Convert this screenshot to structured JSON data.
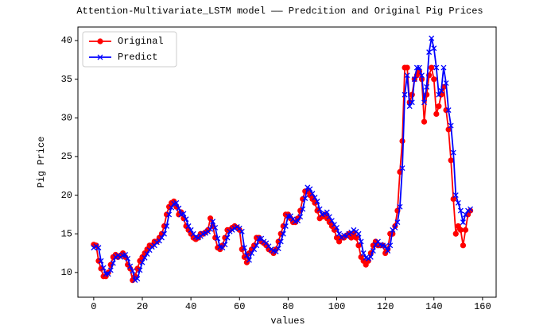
{
  "chart_data": {
    "type": "line",
    "title": "Attention-Multivariate_LSTM model —— Predcition and Original Pig Prices",
    "x_label": "values",
    "y_label": "Pig Price",
    "x": [
      0,
      1,
      2,
      3,
      4,
      5,
      6,
      7,
      8,
      9,
      10,
      11,
      12,
      13,
      14,
      15,
      16,
      17,
      18,
      19,
      20,
      21,
      22,
      23,
      24,
      25,
      26,
      27,
      28,
      29,
      30,
      31,
      32,
      33,
      34,
      35,
      36,
      37,
      38,
      39,
      40,
      41,
      42,
      43,
      44,
      45,
      46,
      47,
      48,
      49,
      50,
      51,
      52,
      53,
      54,
      55,
      56,
      57,
      58,
      59,
      60,
      61,
      62,
      63,
      64,
      65,
      66,
      67,
      68,
      69,
      70,
      71,
      72,
      73,
      74,
      75,
      76,
      77,
      78,
      79,
      80,
      81,
      82,
      83,
      84,
      85,
      86,
      87,
      88,
      89,
      90,
      91,
      92,
      93,
      94,
      95,
      96,
      97,
      98,
      99,
      100,
      101,
      102,
      103,
      104,
      105,
      106,
      107,
      108,
      109,
      110,
      111,
      112,
      113,
      114,
      115,
      116,
      117,
      118,
      119,
      120,
      121,
      122,
      123,
      124,
      125,
      126,
      127,
      128,
      129,
      130,
      131,
      132,
      133,
      134,
      135,
      136,
      137,
      138,
      139,
      140,
      141,
      142,
      143,
      144,
      145,
      146,
      147,
      148,
      149,
      150,
      151,
      152,
      153,
      154,
      155
    ],
    "series": [
      {
        "name": "Original",
        "color": "#ff0000",
        "marker": "circle",
        "values": [
          13.6,
          13.5,
          11.5,
          10.5,
          9.5,
          9.5,
          10,
          11,
          12,
          12.3,
          12,
          12.2,
          12.5,
          12,
          11,
          10.5,
          9,
          9.5,
          10.5,
          11.5,
          12,
          12.5,
          13,
          13.5,
          13.5,
          14,
          14,
          14.5,
          15,
          16,
          17.5,
          18.5,
          19,
          19.2,
          18.5,
          17.5,
          17.8,
          17,
          16,
          15.5,
          15,
          14.5,
          14.3,
          14.5,
          15,
          15,
          15.2,
          15.5,
          17,
          16,
          14.5,
          13.2,
          13,
          13.5,
          14.5,
          15.5,
          15.5,
          15.8,
          16,
          15.8,
          15.5,
          13,
          12,
          11.3,
          12.5,
          13,
          13.5,
          14.5,
          14.5,
          14,
          13.8,
          13.5,
          13,
          12.8,
          12.5,
          13,
          14,
          15,
          16,
          17.5,
          17.5,
          17,
          16.5,
          16.5,
          17,
          18,
          19.5,
          20.5,
          20.5,
          20,
          19.5,
          19,
          18,
          17,
          17.2,
          17.5,
          17,
          16.5,
          16,
          15.5,
          14.5,
          14,
          14.5,
          14.5,
          14.8,
          15,
          14.5,
          15,
          14.5,
          13.5,
          12,
          11.5,
          11,
          11.5,
          12.5,
          13.5,
          14,
          13.5,
          13.5,
          13.5,
          12.5,
          13,
          15,
          15,
          16,
          18,
          23,
          27,
          36.5,
          36.5,
          32,
          33,
          35,
          35.5,
          36,
          35,
          29.5,
          33,
          35.5,
          36.5,
          35,
          30.5,
          31.5,
          33,
          34,
          31,
          28.5,
          24.5,
          19.5,
          15,
          16,
          15.5,
          13.5,
          15.5,
          17.5,
          18
        ]
      },
      {
        "name": "Predict",
        "color": "#0000ff",
        "marker": "x",
        "values": [
          13.2,
          13.4,
          13.2,
          11.5,
          10.6,
          9.8,
          9.8,
          10.3,
          11.2,
          12,
          12.2,
          12,
          12.2,
          12.3,
          11.8,
          10.8,
          10.2,
          9,
          9.2,
          10.3,
          11.3,
          11.9,
          12.4,
          12.9,
          13.3,
          13.5,
          13.9,
          14.1,
          14.5,
          15,
          16,
          17.5,
          18.4,
          18.9,
          19,
          18.3,
          17.5,
          17.6,
          16.9,
          16,
          15.5,
          15,
          14.6,
          14.5,
          14.7,
          15,
          15.1,
          15.3,
          15.6,
          16.6,
          15.8,
          14.4,
          13.3,
          13.2,
          13.6,
          14.5,
          15.3,
          15.5,
          15.7,
          15.9,
          15.7,
          15.3,
          13.2,
          12.2,
          11.6,
          12.5,
          13,
          13.5,
          14.4,
          14.4,
          14,
          13.8,
          13.4,
          13,
          12.8,
          12.7,
          13.1,
          14,
          15,
          16,
          17.3,
          17.3,
          16.9,
          16.6,
          16.7,
          17.2,
          18.2,
          19.6,
          21,
          20.8,
          20.2,
          19.7,
          19.2,
          18.2,
          17.5,
          17.6,
          17.8,
          17.2,
          16.7,
          16.2,
          15.8,
          15,
          14.5,
          14.8,
          14.7,
          15,
          15.2,
          15.5,
          15.3,
          15,
          14,
          12.5,
          11.9,
          11.8,
          12,
          12.8,
          13.6,
          14,
          13.6,
          13.5,
          13.4,
          12.8,
          13.5,
          15.5,
          15.8,
          16.5,
          18.5,
          23.5,
          33,
          35.5,
          31.5,
          32,
          35,
          36.5,
          36.5,
          35.5,
          32,
          34,
          38.5,
          40.3,
          39,
          36.5,
          33,
          33.5,
          36.5,
          34.5,
          31,
          29,
          25.5,
          20,
          19,
          18,
          16.5,
          17.5,
          18,
          18.2
        ]
      }
    ],
    "xlim": [
      -6.5,
      165.6
    ],
    "ylim": [
      6.8,
      41.75
    ],
    "xticks": [
      0,
      20,
      40,
      60,
      80,
      100,
      120,
      140,
      160
    ],
    "yticks": [
      10,
      15,
      20,
      25,
      30,
      35,
      40
    ],
    "legend": "upper left"
  }
}
